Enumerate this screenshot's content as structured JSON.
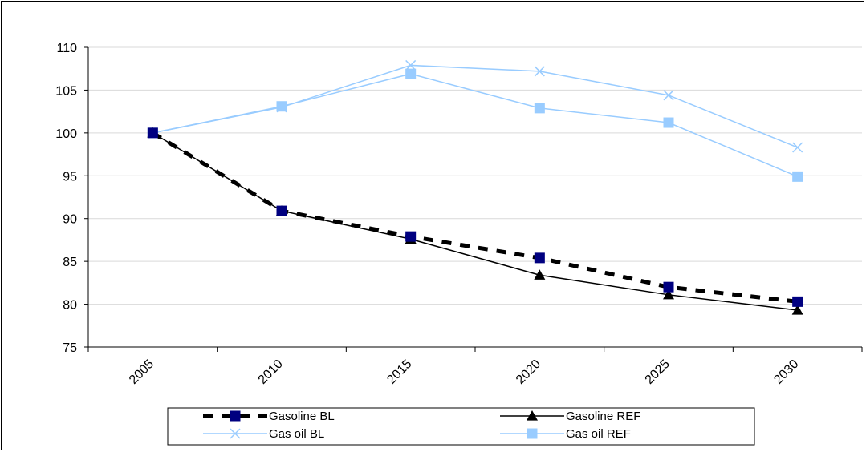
{
  "chart_data": {
    "type": "line",
    "categories": [
      "2005",
      "2010",
      "2015",
      "2020",
      "2025",
      "2030"
    ],
    "ylim": [
      75,
      110
    ],
    "yticks": [
      75,
      80,
      85,
      90,
      95,
      100,
      105,
      110
    ],
    "grid": true,
    "legend_position": "bottom",
    "series": [
      {
        "name": "Gasoline BL",
        "values": [
          100,
          90.9,
          87.9,
          85.4,
          82.0,
          80.3
        ],
        "color": "#000080",
        "line_color": "#000000",
        "line_style": "dashed-thick",
        "marker": "square"
      },
      {
        "name": "Gasoline REF",
        "values": [
          100,
          90.9,
          87.6,
          83.4,
          81.1,
          79.3
        ],
        "color": "#000000",
        "line_color": "#000000",
        "line_style": "solid",
        "marker": "triangle"
      },
      {
        "name": "Gas oil BL",
        "values": [
          100,
          103.0,
          107.9,
          107.2,
          104.4,
          98.3
        ],
        "color": "#99ccff",
        "line_color": "#99ccff",
        "line_style": "solid",
        "marker": "x"
      },
      {
        "name": "Gas oil REF",
        "values": [
          100,
          103.1,
          106.9,
          102.9,
          101.2,
          94.9
        ],
        "color": "#99ccff",
        "line_color": "#99ccff",
        "line_style": "solid",
        "marker": "square"
      }
    ]
  }
}
